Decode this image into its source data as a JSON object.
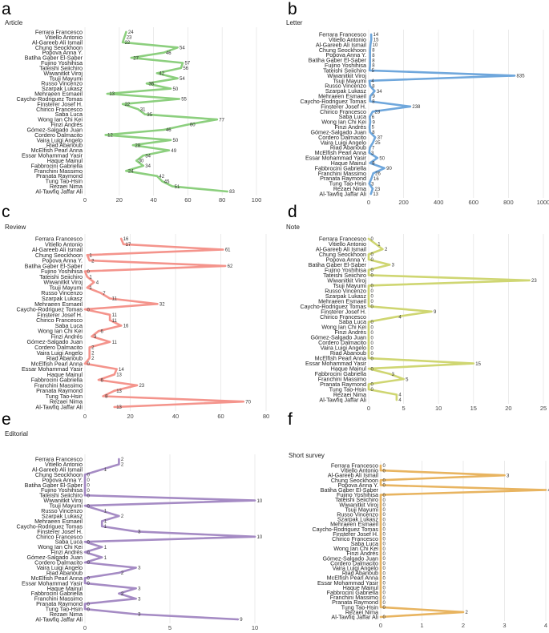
{
  "figure": {
    "authors": [
      "Ferrara Francesco",
      "Vitiello Antonio",
      "Al-Gareeb Ali Ismail",
      "Chung Seockhoon",
      "Popova Anna Y.",
      "Batiha Gaber El-Saber",
      "Fujino Yoshihisa",
      "Tateishi Seiichiro",
      "Wiwanitkit Viroj",
      "Tsuji Mayumi",
      "Russo Vincenzo",
      "Szarpak Lukasz",
      "Mehraeen Esmaeil",
      "Caycho-Rodriguez Tomas",
      "Finsterer Josef H.",
      "Chirico Francesco",
      "Saba Luca",
      "Wong Ian Chi Kei",
      "Finzi Andrés",
      "Gómez-Salgado Juan",
      "Cordero Dalmacito",
      "Vaira Luigi Angelo",
      "Riad Abanoub",
      "McElfish Pearl Anna",
      "Essar Mohammad Yasir",
      "Haque Mainul",
      "Fabbrocini Gabriella",
      "Franchini Massimo",
      "Pranata Raymond",
      "Tung Tao-Hsin",
      "Rezaei Nima",
      "Al-Tawfiq Jaffar Ali"
    ]
  },
  "chart_data": [
    {
      "panel": "a",
      "type": "line",
      "title": "Article",
      "color": "#8ccf7e",
      "xlim": [
        0,
        100
      ],
      "ticks": [
        0,
        20,
        40,
        60,
        80,
        100
      ],
      "values": [
        24,
        23,
        22,
        54,
        46,
        27,
        57,
        56,
        42,
        54,
        36,
        50,
        13,
        55,
        22,
        31,
        35,
        77,
        60,
        46,
        12,
        50,
        28,
        49,
        34,
        30,
        34,
        24,
        42,
        45,
        51,
        83
      ]
    },
    {
      "panel": "b",
      "type": "line",
      "title": "Letter",
      "color": "#6fa7dc",
      "xlim": [
        0,
        1000
      ],
      "ticks": [
        0,
        200,
        400,
        600,
        800,
        1000
      ],
      "values": [
        14,
        15,
        10,
        8,
        8,
        8,
        8,
        5,
        835,
        4,
        8,
        34,
        9,
        8,
        238,
        23,
        6,
        9,
        5,
        8,
        37,
        25,
        7,
        3,
        50,
        8,
        90,
        26,
        16,
        3,
        23,
        13
      ]
    },
    {
      "panel": "c",
      "type": "line",
      "title": "Review",
      "color": "#f4948c",
      "xlim": [
        0,
        80
      ],
      "ticks": [
        0,
        20,
        40,
        60,
        80
      ],
      "values": [
        16,
        17,
        61,
        1,
        2,
        62,
        0,
        1,
        4,
        1,
        7,
        11,
        32,
        0,
        11,
        11,
        16,
        6,
        3,
        11,
        2,
        2,
        2,
        0,
        14,
        13,
        6,
        23,
        13,
        8,
        70,
        13
      ]
    },
    {
      "panel": "d",
      "type": "line",
      "title": "Note",
      "color": "#cfd672",
      "xlim": [
        0,
        25
      ],
      "ticks": [
        0,
        5,
        10,
        15,
        20,
        25
      ],
      "values": [
        0,
        1,
        2,
        0,
        0,
        3,
        0,
        0,
        23,
        0,
        0,
        0,
        0,
        0,
        9,
        4,
        0,
        0,
        0,
        0,
        0,
        0,
        0,
        0,
        15,
        0,
        3,
        5,
        0,
        0,
        4,
        4
      ]
    },
    {
      "panel": "e",
      "type": "line",
      "title": "Editorial",
      "color": "#a58bc4",
      "xlim": [
        0,
        10
      ],
      "ticks": [
        0,
        5,
        10
      ],
      "values": [
        2,
        2,
        1,
        0,
        0,
        0,
        0,
        0,
        10,
        0,
        1,
        2,
        1,
        1,
        3,
        10,
        0,
        1,
        0,
        1,
        0,
        3,
        2,
        0,
        0,
        3,
        2,
        3,
        0,
        0,
        3,
        9
      ]
    },
    {
      "panel": "f",
      "type": "line",
      "title": "Short survey",
      "color": "#e8b460",
      "xlim": [
        0,
        4
      ],
      "ticks": [
        0,
        1,
        2,
        3,
        4
      ],
      "values": [
        0,
        0,
        3,
        0,
        0,
        4,
        0,
        0,
        0,
        0,
        0,
        0,
        0,
        0,
        0,
        0,
        0,
        0,
        0,
        0,
        0,
        0,
        0,
        0,
        0,
        0,
        0,
        0,
        0,
        0,
        2,
        0
      ]
    }
  ]
}
